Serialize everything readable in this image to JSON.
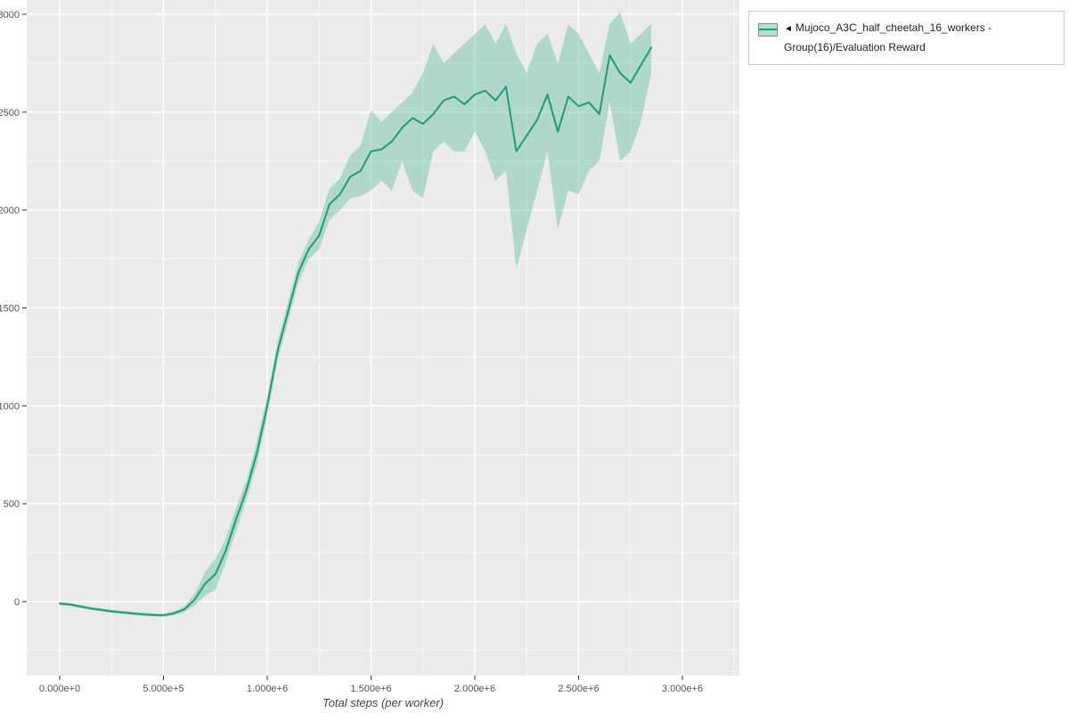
{
  "page": {
    "background": "#ffffff"
  },
  "legend": {
    "marker": "◄",
    "label": "Mujoco_A3C_half_cheetah_16_workers - Group(16)/Evaluation Reward"
  },
  "chart_data": {
    "type": "line",
    "title": "",
    "xlabel": "Total steps (per worker)",
    "ylabel": "",
    "panel_bg": "#ebebeb",
    "grid_color": "#ffffff",
    "tick_color": "#555555",
    "legend_position": "top-right",
    "grid": true,
    "xlim_millions": [
      -0.16,
      3.27
    ],
    "ylim": [
      -377,
      3072
    ],
    "xticks": {
      "values": [
        0,
        0.5,
        1,
        1.5,
        2,
        2.5,
        3
      ],
      "labels": [
        "0.000e+0",
        "5.000e+5",
        "1.000e+6",
        "1.500e+6",
        "2.000e+6",
        "2.500e+6",
        "3.000e+6"
      ]
    },
    "yticks": {
      "values": [
        0,
        500,
        1000,
        1500,
        2000,
        2500,
        3000
      ],
      "labels": [
        "0",
        "500",
        "1000",
        "1500",
        "2000",
        "2500",
        "3000"
      ]
    },
    "series": [
      {
        "name": "Mujoco_A3C_half_cheetah_16_workers - Group(16)/Evaluation Reward",
        "line_color": "#1e9b77",
        "band_color": "#66c2a5",
        "band_opacity": 0.45,
        "x_millions": [
          0,
          0.05,
          0.1,
          0.15,
          0.2,
          0.25,
          0.3,
          0.35,
          0.4,
          0.45,
          0.5,
          0.55,
          0.6,
          0.65,
          0.7,
          0.75,
          0.8,
          0.85,
          0.9,
          0.95,
          1.0,
          1.05,
          1.1,
          1.15,
          1.2,
          1.25,
          1.3,
          1.35,
          1.4,
          1.45,
          1.5,
          1.55,
          1.6,
          1.65,
          1.7,
          1.75,
          1.8,
          1.85,
          1.9,
          1.95,
          2.0,
          2.05,
          2.1,
          2.15,
          2.2,
          2.25,
          2.3,
          2.35,
          2.4,
          2.45,
          2.5,
          2.55,
          2.6,
          2.65,
          2.7,
          2.75,
          2.8,
          2.85
        ],
        "mean": [
          -10,
          -15,
          -25,
          -35,
          -42,
          -50,
          -55,
          -60,
          -65,
          -68,
          -70,
          -60,
          -40,
          10,
          90,
          140,
          260,
          420,
          570,
          760,
          1000,
          1280,
          1480,
          1680,
          1800,
          1870,
          2030,
          2080,
          2170,
          2200,
          2300,
          2310,
          2350,
          2420,
          2470,
          2440,
          2490,
          2560,
          2580,
          2540,
          2590,
          2610,
          2560,
          2630,
          2300,
          2380,
          2460,
          2590,
          2400,
          2580,
          2530,
          2550,
          2490,
          2790,
          2700,
          2650,
          2740,
          2830
        ],
        "lower": [
          -18,
          -23,
          -33,
          -43,
          -50,
          -58,
          -63,
          -68,
          -73,
          -76,
          -78,
          -70,
          -55,
          -20,
          30,
          60,
          200,
          360,
          520,
          700,
          950,
          1230,
          1430,
          1630,
          1750,
          1800,
          1950,
          2000,
          2060,
          2070,
          2100,
          2150,
          2100,
          2250,
          2100,
          2060,
          2300,
          2350,
          2300,
          2300,
          2400,
          2300,
          2150,
          2200,
          1700,
          1900,
          2100,
          2300,
          1900,
          2100,
          2080,
          2200,
          2250,
          2550,
          2250,
          2300,
          2450,
          2700
        ],
        "upper": [
          -2,
          -7,
          -17,
          -27,
          -34,
          -42,
          -47,
          -52,
          -57,
          -60,
          -62,
          -50,
          -25,
          40,
          150,
          220,
          320,
          480,
          620,
          820,
          1050,
          1330,
          1530,
          1730,
          1850,
          1940,
          2110,
          2160,
          2280,
          2330,
          2510,
          2450,
          2500,
          2550,
          2600,
          2700,
          2850,
          2750,
          2800,
          2850,
          2900,
          2950,
          2850,
          2950,
          2800,
          2700,
          2850,
          2900,
          2750,
          2950,
          2900,
          2800,
          2700,
          2950,
          3010,
          2850,
          2900,
          2950
        ]
      }
    ]
  }
}
